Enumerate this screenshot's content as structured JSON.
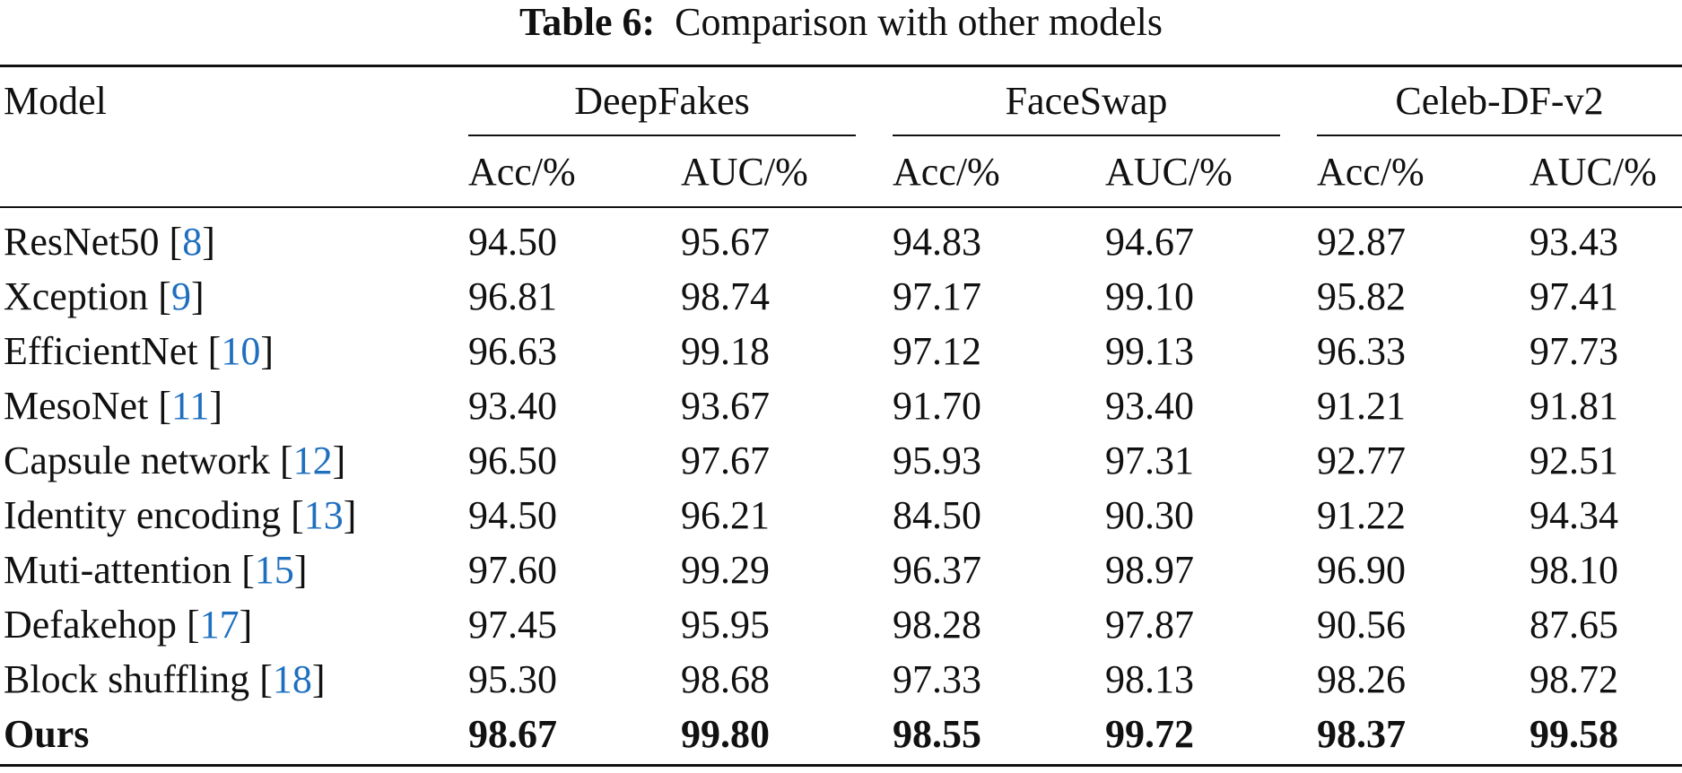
{
  "caption": {
    "label": "Table 6:",
    "text": "Comparison with other models"
  },
  "table": {
    "model_header": "Model",
    "groups": [
      "DeepFakes",
      "FaceSwap",
      "Celeb-DF-v2"
    ],
    "subheaders": [
      "Acc/%",
      "AUC/%",
      "Acc/%",
      "AUC/%",
      "Acc/%",
      "AUC/%"
    ],
    "rows": [
      {
        "model": "ResNet50",
        "ref": "8",
        "values": [
          "94.50",
          "95.67",
          "94.83",
          "94.67",
          "92.87",
          "93.43"
        ]
      },
      {
        "model": "Xception",
        "ref": "9",
        "values": [
          "96.81",
          "98.74",
          "97.17",
          "99.10",
          "95.82",
          "97.41"
        ]
      },
      {
        "model": "EfficientNet",
        "ref": "10",
        "values": [
          "96.63",
          "99.18",
          "97.12",
          "99.13",
          "96.33",
          "97.73"
        ]
      },
      {
        "model": "MesoNet",
        "ref": "11",
        "values": [
          "93.40",
          "93.67",
          "91.70",
          "93.40",
          "91.21",
          "91.81"
        ]
      },
      {
        "model": "Capsule network",
        "ref": "12",
        "values": [
          "96.50",
          "97.67",
          "95.93",
          "97.31",
          "92.77",
          "92.51"
        ]
      },
      {
        "model": "Identity encoding",
        "ref": "13",
        "values": [
          "94.50",
          "96.21",
          "84.50",
          "90.30",
          "91.22",
          "94.34"
        ]
      },
      {
        "model": "Muti-attention",
        "ref": "15",
        "values": [
          "97.60",
          "99.29",
          "96.37",
          "98.97",
          "96.90",
          "98.10"
        ]
      },
      {
        "model": "Defakehop",
        "ref": "17",
        "values": [
          "97.45",
          "95.95",
          "98.28",
          "97.87",
          "90.56",
          "87.65"
        ]
      },
      {
        "model": "Block shuffling",
        "ref": "18",
        "values": [
          "95.30",
          "98.68",
          "97.33",
          "98.13",
          "98.26",
          "98.72"
        ]
      },
      {
        "model": "Ours",
        "ref": "",
        "values": [
          "98.67",
          "99.80",
          "98.55",
          "99.72",
          "98.37",
          "99.58"
        ],
        "bold": true
      }
    ]
  },
  "colors": {
    "text": "#111111",
    "reference_link": "#1f6fbf",
    "background": "#ffffff"
  }
}
